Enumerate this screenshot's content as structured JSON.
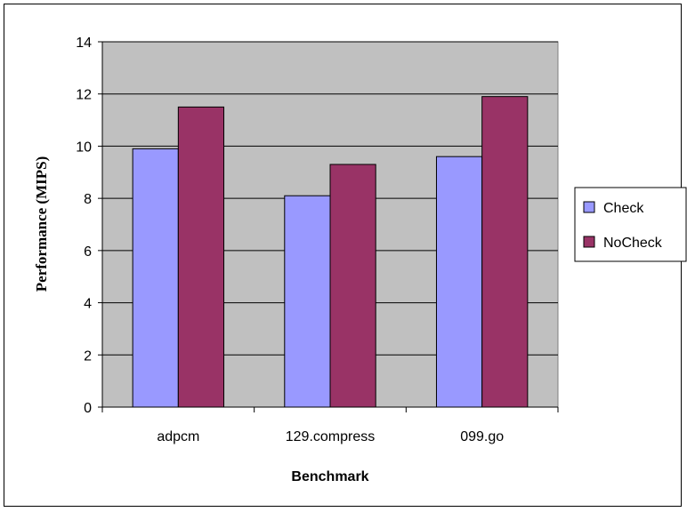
{
  "chart_data": {
    "type": "bar",
    "title": "",
    "xlabel": "Benchmark",
    "ylabel": "Performance (MIPS)",
    "categories": [
      "adpcm",
      "129.compress",
      "099.go"
    ],
    "series": [
      {
        "name": "Check",
        "values": [
          9.9,
          8.1,
          9.6
        ],
        "color": "#9999ff"
      },
      {
        "name": "NoCheck",
        "values": [
          11.5,
          9.3,
          11.9
        ],
        "color": "#993366"
      }
    ],
    "ylim": [
      0,
      14
    ],
    "yticks": [
      0,
      2,
      4,
      6,
      8,
      10,
      12,
      14
    ],
    "grid": true,
    "plot_background": "#c0c0c0",
    "legend_position": "right"
  }
}
